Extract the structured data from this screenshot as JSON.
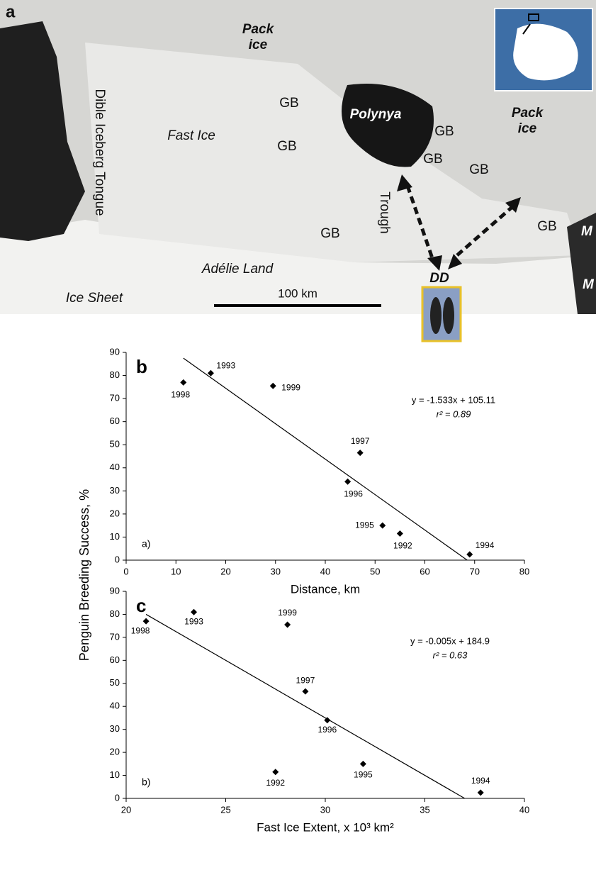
{
  "map": {
    "panel_label": "a",
    "labels": [
      "Pack ice",
      "Dible Iceberg Tongue",
      "Fast Ice",
      "GB",
      "GB",
      "Polynya",
      "GB",
      "GB",
      "GB",
      "Pack ice",
      "Trough",
      "GB",
      "GB",
      "M",
      "M",
      "DD",
      "Adélie Land",
      "Ice Sheet"
    ],
    "scale_label": "100 km"
  },
  "chart_data": [
    {
      "type": "scatter",
      "panel_label": "b",
      "inner_label": "a)",
      "ylabel": "Penguin Breeding Success, %",
      "xlabel": "Distance, km",
      "x": [
        11.5,
        17,
        29.5,
        47,
        44.5,
        51.5,
        55,
        69
      ],
      "values": [
        77,
        81,
        75.5,
        46.5,
        34,
        15,
        11.5,
        2.5
      ],
      "point_labels": [
        "1998",
        "1993",
        "1999",
        "1997",
        "1996",
        "1995",
        "1992",
        "1994"
      ],
      "trendline": {
        "x": [
          11.5,
          68.5
        ],
        "y": [
          87.5,
          0
        ],
        "equation": "y = -1.533x + 105.11",
        "r2": "r² = 0.89"
      },
      "color": "#000000",
      "xlim": [
        0,
        80
      ],
      "xticks": [
        0,
        10,
        20,
        30,
        40,
        50,
        60,
        70,
        80
      ],
      "ylim": [
        0,
        90
      ],
      "yticks": [
        0,
        10,
        20,
        30,
        40,
        50,
        60,
        70,
        80,
        90
      ]
    },
    {
      "type": "scatter",
      "panel_label": "c",
      "inner_label": "b)",
      "xlabel": "Fast Ice Extent, x 10³ km²",
      "x": [
        21,
        23.4,
        28.1,
        29,
        30.1,
        27.5,
        31.9,
        37.8
      ],
      "values": [
        77,
        81,
        75.5,
        46.5,
        34,
        11.5,
        15,
        2.5
      ],
      "point_labels": [
        "1998",
        "1993",
        "1999",
        "1997",
        "1996",
        "1992",
        "1995",
        "1994"
      ],
      "trendline": {
        "x": [
          21,
          37
        ],
        "y": [
          80,
          0
        ],
        "equation": "y = -0.005x + 184.9",
        "r2": "r² = 0.63"
      },
      "color": "#000000",
      "xlim": [
        20,
        40
      ],
      "xticks": [
        20,
        25,
        30,
        35,
        40
      ],
      "ylim": [
        0,
        90
      ],
      "yticks": [
        0,
        10,
        20,
        30,
        40,
        50,
        60,
        70,
        80,
        90
      ]
    }
  ]
}
